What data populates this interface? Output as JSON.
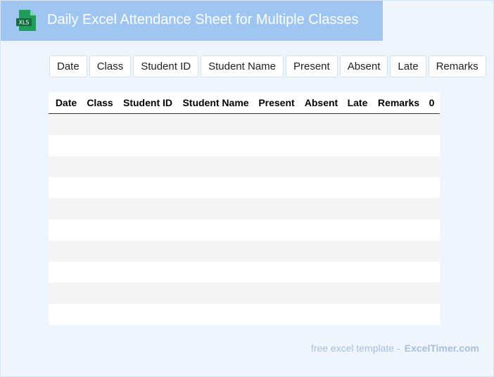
{
  "header": {
    "icon_label": "XLS",
    "title": "Daily Excel Attendance Sheet for Multiple Classes"
  },
  "buttons": [
    "Date",
    "Class",
    "Student ID",
    "Student Name",
    "Present",
    "Absent",
    "Late",
    "Remarks"
  ],
  "table": {
    "columns": [
      "Date",
      "Class",
      "Student ID",
      "Student Name",
      "Present",
      "Absent",
      "Late",
      "Remarks",
      "0"
    ]
  },
  "footer": {
    "text": "free excel template -",
    "brand": "ExcelTimer.com"
  }
}
